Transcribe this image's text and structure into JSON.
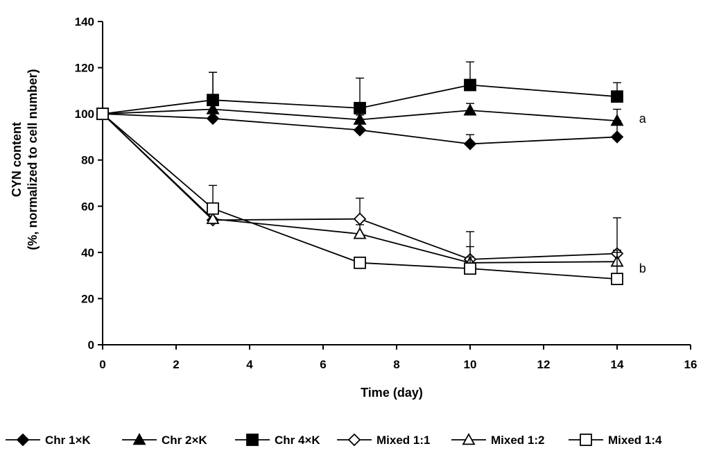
{
  "chart_data": {
    "type": "line",
    "title": "",
    "xlabel": "Time (day)",
    "ylabel_line1": "CYN content",
    "ylabel_line2": "(%, normalized to cell number)",
    "xlim": [
      0,
      16
    ],
    "ylim": [
      0,
      140
    ],
    "xticks": [
      0,
      2,
      4,
      6,
      8,
      10,
      12,
      14,
      16
    ],
    "yticks": [
      0,
      20,
      40,
      60,
      80,
      100,
      120,
      140
    ],
    "grid": false,
    "legend_position": "bottom",
    "annotations": [
      {
        "text": "a",
        "x": 14.6,
        "y": 98
      },
      {
        "text": "b",
        "x": 14.6,
        "y": 33
      }
    ],
    "series": [
      {
        "name": "Chr 1×K",
        "marker": "diamond",
        "filled": true,
        "x": [
          0,
          3,
          7,
          10,
          14
        ],
        "y": [
          100,
          98,
          93,
          87,
          90
        ],
        "err": [
          0,
          6,
          3,
          4,
          7
        ]
      },
      {
        "name": "Chr 2×K",
        "marker": "triangle",
        "filled": true,
        "x": [
          0,
          3,
          7,
          10,
          14
        ],
        "y": [
          100,
          102,
          97.5,
          101.5,
          97
        ],
        "err": [
          0,
          16,
          2,
          3,
          5
        ]
      },
      {
        "name": "Chr 4×K",
        "marker": "square",
        "filled": true,
        "x": [
          0,
          3,
          7,
          10,
          14
        ],
        "y": [
          100,
          106,
          102.5,
          112.5,
          107.5
        ],
        "err": [
          0,
          12,
          13,
          10,
          6
        ]
      },
      {
        "name": "Mixed 1:1",
        "marker": "diamond",
        "filled": false,
        "x": [
          0,
          3,
          7,
          10,
          14
        ],
        "y": [
          100,
          54,
          54.5,
          37,
          39.5
        ],
        "err": [
          0,
          5,
          9,
          12,
          15.5
        ]
      },
      {
        "name": "Mixed 1:2",
        "marker": "triangle",
        "filled": false,
        "x": [
          0,
          3,
          7,
          10,
          14
        ],
        "y": [
          100,
          54.5,
          48,
          35.5,
          36
        ],
        "err": [
          0,
          5,
          4,
          7,
          5
        ]
      },
      {
        "name": "Mixed 1:4",
        "marker": "square",
        "filled": false,
        "x": [
          0,
          3,
          7,
          10,
          14
        ],
        "y": [
          100,
          59,
          35.5,
          33,
          28.5
        ],
        "err": [
          0,
          10,
          0,
          5,
          11.5
        ]
      }
    ]
  }
}
